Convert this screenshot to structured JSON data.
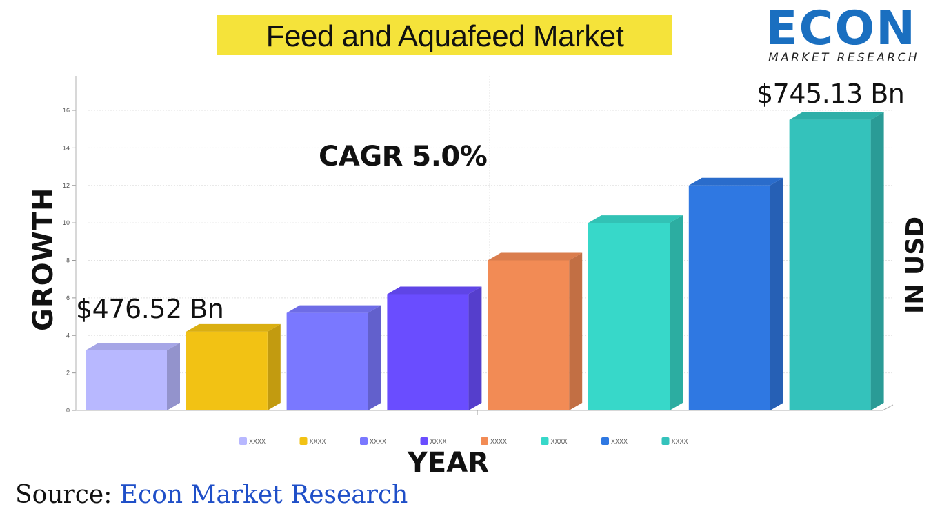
{
  "title": "Feed and Aquafeed Market",
  "logo": {
    "word": "ECON",
    "subtitle": "MARKET RESEARCH"
  },
  "annotations": {
    "cagr": "CAGR 5.0%",
    "first_value": "$476.52 Bn",
    "last_value": "$745.13 Bn"
  },
  "source": {
    "prefix": "Source: ",
    "name": "Econ Market Research"
  },
  "colors": {
    "title_bg": "#f5e33a",
    "logo_blue": "#1a6fc0",
    "source_blue": "#1f4fc8"
  },
  "chart_data": {
    "type": "bar",
    "ylabel": "GROWTH",
    "y2label": "IN USD",
    "xlabel": "YEAR",
    "ylim": [
      0,
      17
    ],
    "y_ticks": [
      0,
      2,
      4,
      6,
      8,
      10,
      12,
      14,
      16
    ],
    "grid": true,
    "legend_position": "bottom",
    "series": [
      {
        "name": "XXXX",
        "value": 3.2,
        "color": "#b8b8ff"
      },
      {
        "name": "XXXX",
        "value": 4.2,
        "color": "#f2c214"
      },
      {
        "name": "XXXX",
        "value": 5.2,
        "color": "#7a78ff"
      },
      {
        "name": "XXXX",
        "value": 6.2,
        "color": "#6a4dff"
      },
      {
        "name": "XXXX",
        "value": 8.0,
        "color": "#f28b55"
      },
      {
        "name": "XXXX",
        "value": 10.0,
        "color": "#37d8c9"
      },
      {
        "name": "XXXX",
        "value": 12.0,
        "color": "#2f78e2"
      },
      {
        "name": "XXXX",
        "value": 15.5,
        "color": "#34c2bb"
      }
    ]
  }
}
